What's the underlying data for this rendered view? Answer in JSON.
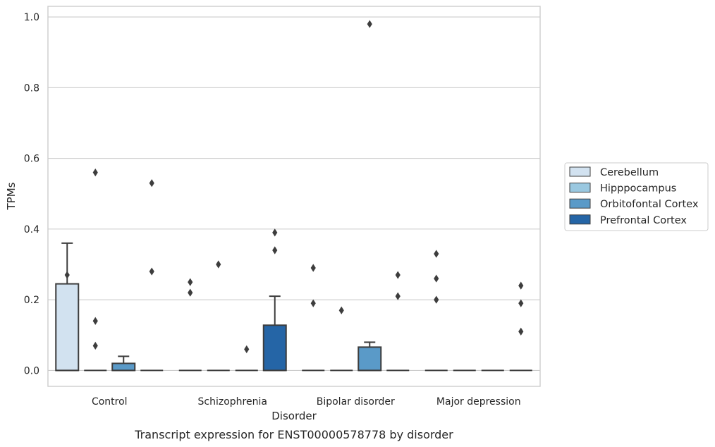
{
  "chart_data": {
    "type": "box",
    "title": "",
    "caption": "Transcript expression for ENST00000578778 by disorder",
    "xlabel": "Disorder",
    "ylabel": "TPMs",
    "ylim": [
      -0.045,
      1.03
    ],
    "yticks": [
      0.0,
      0.2,
      0.4,
      0.6,
      0.8,
      1.0
    ],
    "ytick_labels": [
      "0.0",
      "0.2",
      "0.4",
      "0.6",
      "0.8",
      "1.0"
    ],
    "categories": [
      "Control",
      "Schizophrenia",
      "Bipolar disorder",
      "Major depression"
    ],
    "grid": "horizontal",
    "legend_position": "right",
    "series": [
      {
        "name": "Cerebellum",
        "color": "#d2e2f0",
        "boxes": [
          {
            "q1": 0.0,
            "median": 0.0,
            "q3": 0.245,
            "whislo": 0.0,
            "whishi": 0.36,
            "fliers": [
              0.27
            ]
          },
          {
            "q1": 0.0,
            "median": 0.0,
            "q3": 0.0,
            "whislo": 0.0,
            "whishi": 0.0,
            "fliers": [
              0.25,
              0.22
            ]
          },
          {
            "q1": 0.0,
            "median": 0.0,
            "q3": 0.0,
            "whislo": 0.0,
            "whishi": 0.0,
            "fliers": [
              0.29,
              0.19
            ]
          },
          {
            "q1": 0.0,
            "median": 0.0,
            "q3": 0.0,
            "whislo": 0.0,
            "whishi": 0.0,
            "fliers": [
              0.33,
              0.26,
              0.2
            ]
          }
        ]
      },
      {
        "name": "Hipppocampus",
        "color": "#9ac8e0",
        "boxes": [
          {
            "q1": 0.0,
            "median": 0.0,
            "q3": 0.0,
            "whislo": 0.0,
            "whishi": 0.0,
            "fliers": [
              0.56,
              0.14,
              0.07
            ]
          },
          {
            "q1": 0.0,
            "median": 0.0,
            "q3": 0.0,
            "whislo": 0.0,
            "whishi": 0.0,
            "fliers": [
              0.3
            ]
          },
          {
            "q1": 0.0,
            "median": 0.0,
            "q3": 0.0,
            "whislo": 0.0,
            "whishi": 0.0,
            "fliers": [
              0.17
            ]
          },
          {
            "q1": 0.0,
            "median": 0.0,
            "q3": 0.0,
            "whislo": 0.0,
            "whishi": 0.0,
            "fliers": []
          }
        ]
      },
      {
        "name": "Orbitofontal Cortex",
        "color": "#5a9ac8",
        "boxes": [
          {
            "q1": 0.0,
            "median": 0.0,
            "q3": 0.02,
            "whislo": 0.0,
            "whishi": 0.04,
            "fliers": []
          },
          {
            "q1": 0.0,
            "median": 0.0,
            "q3": 0.0,
            "whislo": 0.0,
            "whishi": 0.0,
            "fliers": [
              0.06
            ]
          },
          {
            "q1": 0.0,
            "median": 0.0,
            "q3": 0.066,
            "whislo": 0.0,
            "whishi": 0.08,
            "fliers": [
              0.98
            ]
          },
          {
            "q1": 0.0,
            "median": 0.0,
            "q3": 0.0,
            "whislo": 0.0,
            "whishi": 0.0,
            "fliers": []
          }
        ]
      },
      {
        "name": "Prefrontal Cortex",
        "color": "#2565a6",
        "boxes": [
          {
            "q1": 0.0,
            "median": 0.0,
            "q3": 0.0,
            "whislo": 0.0,
            "whishi": 0.0,
            "fliers": [
              0.53,
              0.28
            ]
          },
          {
            "q1": 0.0,
            "median": 0.0,
            "q3": 0.128,
            "whislo": 0.0,
            "whishi": 0.21,
            "fliers": [
              0.39,
              0.34
            ]
          },
          {
            "q1": 0.0,
            "median": 0.0,
            "q3": 0.0,
            "whislo": 0.0,
            "whishi": 0.0,
            "fliers": [
              0.27,
              0.21
            ]
          },
          {
            "q1": 0.0,
            "median": 0.0,
            "q3": 0.0,
            "whislo": 0.0,
            "whishi": 0.0,
            "fliers": [
              0.24,
              0.19,
              0.11
            ]
          }
        ]
      }
    ]
  }
}
